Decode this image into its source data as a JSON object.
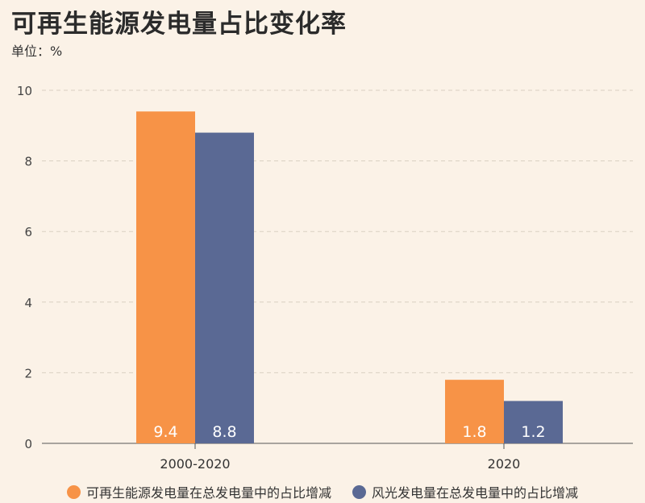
{
  "chart_data": {
    "type": "bar",
    "title": "可再生能源发电量占比变化率",
    "unit_label": "单位：%",
    "categories": [
      "2000-2020",
      "2020"
    ],
    "series": [
      {
        "name": "可再生能源发电量在总发电量中的占比增减",
        "values": [
          9.4,
          1.8
        ],
        "color": "#f79347"
      },
      {
        "name": "风光发电量在总发电量中的占比增减",
        "values": [
          8.8,
          1.2
        ],
        "color": "#5a6994"
      }
    ],
    "ylim": [
      0,
      10
    ],
    "yticks": [
      "0",
      "2",
      "4",
      "6",
      "8",
      "10"
    ],
    "grid": true,
    "legend_position": "bottom"
  }
}
